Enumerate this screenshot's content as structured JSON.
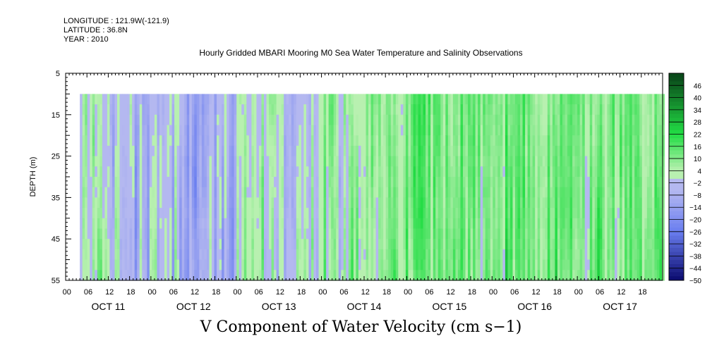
{
  "meta": {
    "longitude": "LONGITUDE : 121.9W(-121.9)",
    "latitude": "LATITUDE : 36.8N",
    "year": "YEAR : 2010"
  },
  "chart_data": {
    "type": "heatmap",
    "title": "Hourly Gridded MBARI Mooring M0 Sea Water Temperature and Salinity Observations",
    "xlabel": "V Component of Water Velocity (cm s−1)",
    "ylabel": "DEPTH (m)",
    "ylim": [
      5,
      55
    ],
    "y_inverted": true,
    "y_ticks": [
      5,
      15,
      25,
      35,
      45,
      55
    ],
    "data_depth_range": [
      10,
      55
    ],
    "x_hour_ticks": [
      "00",
      "06",
      "12",
      "18",
      "00",
      "06",
      "12",
      "18",
      "00",
      "06",
      "12",
      "18",
      "00",
      "06",
      "12",
      "18",
      "00",
      "06",
      "12",
      "18",
      "00",
      "06",
      "12",
      "18",
      "00",
      "06",
      "12",
      "18"
    ],
    "x_day_labels": [
      "OCT 11",
      "OCT 12",
      "OCT 13",
      "OCT 14",
      "OCT 15",
      "OCT 16",
      "OCT 17"
    ],
    "data_time_range_hours": [
      4,
      168
    ],
    "colorbar": {
      "levels": [
        46,
        40,
        34,
        28,
        22,
        16,
        10,
        4,
        -2,
        -8,
        -14,
        -20,
        -26,
        -32,
        -38,
        -44,
        -50
      ],
      "range": [
        -50,
        52
      ],
      "colors": {
        "low": "#0a0a6e",
        "neg_mid": "#6a7ef0",
        "neg_light": "#b4b8f0",
        "pos_light": "#b8f0b0",
        "pos_mid": "#22dd44",
        "high": "#0a4a1a"
      }
    },
    "period_means": [
      {
        "day": "OCT 11",
        "hours": [
          4,
          12
        ],
        "mean_v": 3
      },
      {
        "day": "OCT 11",
        "hours": [
          12,
          28
        ],
        "mean_v": -5
      },
      {
        "day": "OCT 12",
        "hours": [
          28,
          34
        ],
        "mean_v": -2
      },
      {
        "day": "OCT 12",
        "hours": [
          34,
          48
        ],
        "mean_v": -10
      },
      {
        "day": "OCT 13",
        "hours": [
          48,
          60
        ],
        "mean_v": 2
      },
      {
        "day": "OCT 13",
        "hours": [
          60,
          72
        ],
        "mean_v": -4
      },
      {
        "day": "OCT 14",
        "hours": [
          72,
          96
        ],
        "mean_v": 7
      },
      {
        "day": "OCT 15",
        "hours": [
          96,
          120
        ],
        "mean_v": 13
      },
      {
        "day": "OCT 16",
        "hours": [
          120,
          144
        ],
        "mean_v": 12
      },
      {
        "day": "OCT 17",
        "hours": [
          144,
          168
        ],
        "mean_v": 10
      }
    ]
  }
}
